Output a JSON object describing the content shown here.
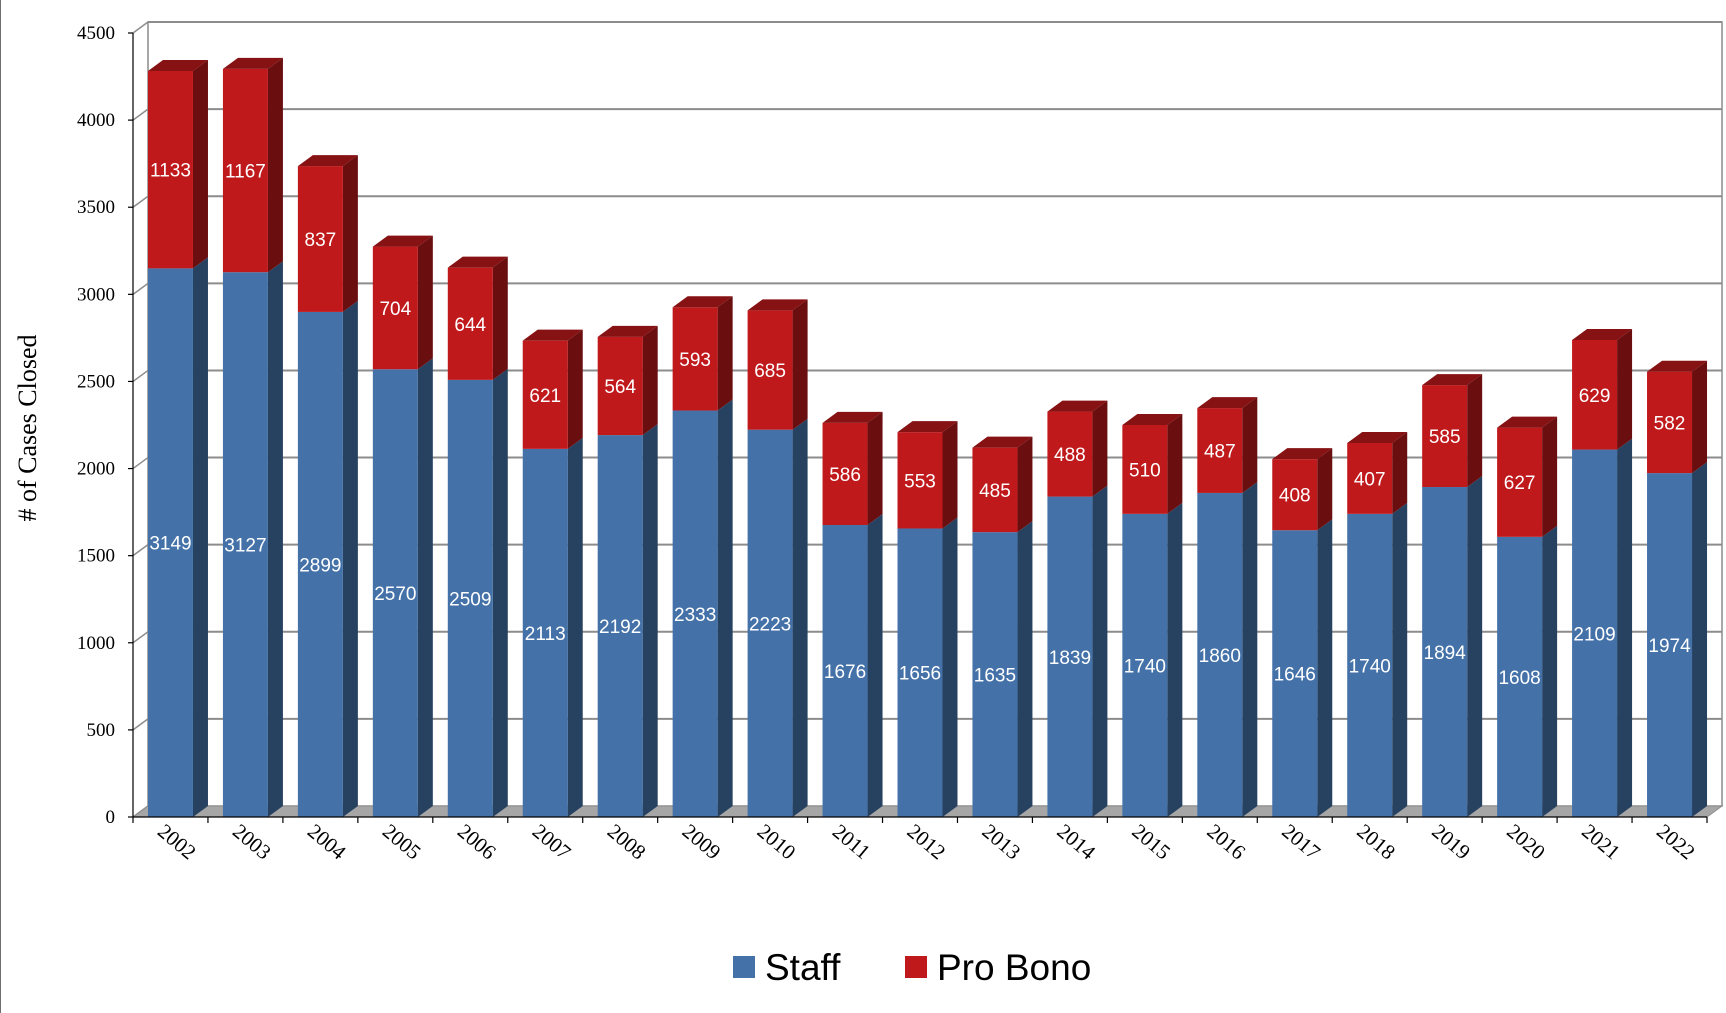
{
  "chart_data": {
    "type": "bar",
    "stacked": true,
    "style": "3d",
    "categories": [
      "2002",
      "2003",
      "2004",
      "2005",
      "2006",
      "2007",
      "2008",
      "2009",
      "2010",
      "2011",
      "2012",
      "2013",
      "2014",
      "2015",
      "2016",
      "2017",
      "2018",
      "2019",
      "2020",
      "2021",
      "2022"
    ],
    "series": [
      {
        "name": "Staff",
        "color": "#4472a8",
        "values": [
          3149,
          3127,
          2899,
          2570,
          2509,
          2113,
          2192,
          2333,
          2223,
          1676,
          1656,
          1635,
          1839,
          1740,
          1860,
          1646,
          1740,
          1894,
          1608,
          2109,
          1974
        ]
      },
      {
        "name": "Pro Bono",
        "color": "#c0191c",
        "values": [
          1133,
          1167,
          837,
          704,
          644,
          621,
          564,
          593,
          685,
          586,
          553,
          485,
          488,
          510,
          487,
          408,
          407,
          585,
          627,
          629,
          582
        ]
      }
    ],
    "ylabel": "# of Cases Closed",
    "xlabel": "",
    "ylim": [
      0,
      4500
    ],
    "yticks": [
      0,
      500,
      1000,
      1500,
      2000,
      2500,
      3000,
      3500,
      4000,
      4500
    ],
    "grid": true,
    "legend": "bottom-center"
  }
}
